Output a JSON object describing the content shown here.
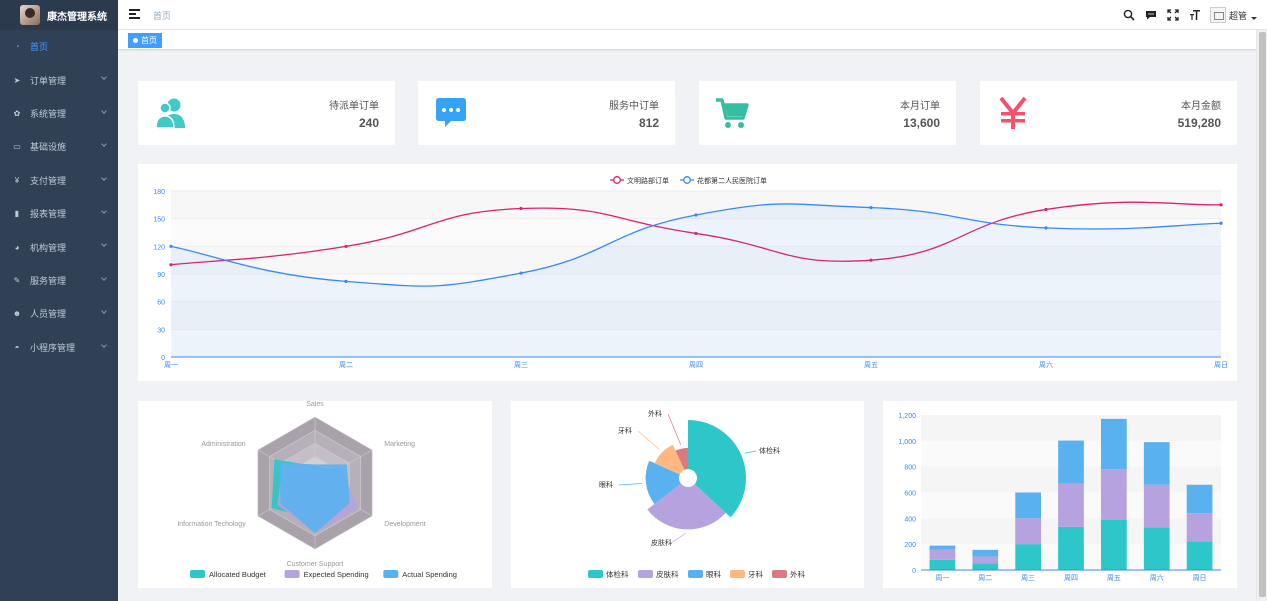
{
  "app": {
    "title": "康杰管理系统"
  },
  "sidebar": {
    "items": [
      {
        "label": "首页",
        "icon": "dashboard-icon",
        "active": true
      },
      {
        "label": "订单管理",
        "icon": "send-icon"
      },
      {
        "label": "系统管理",
        "icon": "gear-icon"
      },
      {
        "label": "基础设施",
        "icon": "monitor-icon"
      },
      {
        "label": "支付管理",
        "icon": "yen-icon"
      },
      {
        "label": "报表管理",
        "icon": "bar-chart-icon"
      },
      {
        "label": "机构管理",
        "icon": "globe-icon"
      },
      {
        "label": "服务管理",
        "icon": "edit-icon"
      },
      {
        "label": "人员管理",
        "icon": "users-icon"
      },
      {
        "label": "小程序管理",
        "icon": "chat-icon"
      }
    ]
  },
  "header": {
    "breadcrumb": "首页",
    "user_name": "超管",
    "icons": [
      "search-icon",
      "message-icon",
      "fullscreen-icon",
      "font-size-icon"
    ]
  },
  "tags": {
    "active": "首页"
  },
  "panels": [
    {
      "label": "待派单订单",
      "value": "240",
      "icon": "people-icon",
      "color": "#40c9c6"
    },
    {
      "label": "服务中订单",
      "value": "812",
      "icon": "message-icon",
      "color": "#36a3f7"
    },
    {
      "label": "本月订单",
      "value": "13,600",
      "icon": "shopping-cart-icon",
      "color": "#34bfa3"
    },
    {
      "label": "本月金额",
      "value": "519,280",
      "icon": "yen-icon",
      "color": "#f4516c"
    }
  ],
  "line_chart": {
    "chart_data": {
      "type": "line",
      "categories": [
        "周一",
        "周二",
        "周三",
        "周四",
        "周五",
        "周六",
        "周日"
      ],
      "series": [
        {
          "name": "文明路部订单",
          "values": [
            100,
            120,
            161,
            134,
            105,
            160,
            165
          ],
          "color": "#e0206a"
        },
        {
          "name": "花都第二人民医院订单",
          "values": [
            120,
            82,
            91,
            154,
            162,
            140,
            145
          ],
          "color": "#3888fa"
        }
      ],
      "ylim": [
        0,
        180
      ],
      "yticks": [
        0,
        30,
        60,
        90,
        120,
        150,
        180
      ],
      "legend": "top-center",
      "grid": true
    }
  },
  "radar_chart": {
    "chart_data": {
      "type": "radar",
      "indicators": [
        "Sales",
        "Marketing",
        "Development",
        "Customer Support",
        "Information Techology",
        "Administration"
      ],
      "series": [
        {
          "name": "Allocated Budget",
          "values": [
            5000,
            7000,
            12000,
            11000,
            15000,
            14000
          ],
          "color": "#2ec7c9"
        },
        {
          "name": "Expected Spending",
          "values": [
            4000,
            9000,
            15000,
            15000,
            13000,
            11000
          ],
          "color": "#b6a2de"
        },
        {
          "name": "Actual Spending",
          "values": [
            5500,
            11000,
            12000,
            15000,
            12000,
            12000
          ],
          "color": "#5ab1ef"
        }
      ],
      "max": 20000,
      "legend": "bottom"
    }
  },
  "pie_chart": {
    "chart_data": {
      "type": "pie",
      "slices": [
        {
          "name": "体检科",
          "value": 320,
          "color": "#2ec7c9"
        },
        {
          "name": "皮肤科",
          "value": 240,
          "color": "#b6a2de"
        },
        {
          "name": "眼科",
          "value": 149,
          "color": "#5ab1ef"
        },
        {
          "name": "牙科",
          "value": 100,
          "color": "#ffb980"
        },
        {
          "name": "外科",
          "value": 59,
          "color": "#d87a80"
        }
      ],
      "rose": true,
      "legend": "bottom"
    }
  },
  "bar_chart": {
    "chart_data": {
      "type": "bar",
      "stacked": true,
      "categories": [
        "周一",
        "周二",
        "周三",
        "周四",
        "周五",
        "周六",
        "周日"
      ],
      "series": [
        {
          "name": "体检科",
          "values": [
            79,
            52,
            200,
            334,
            390,
            330,
            220
          ],
          "color": "#2ec7c9"
        },
        {
          "name": "皮肤科",
          "values": [
            80,
            52,
            200,
            334,
            390,
            330,
            220
          ],
          "color": "#b6a2de"
        },
        {
          "name": "眼科",
          "values": [
            30,
            52,
            200,
            334,
            390,
            330,
            220
          ],
          "color": "#5ab1ef"
        }
      ],
      "ylim": [
        0,
        1200
      ],
      "yticks": [
        "0",
        "200",
        "400",
        "600",
        "800",
        "1,000",
        "1,200"
      ],
      "grid": true
    }
  }
}
